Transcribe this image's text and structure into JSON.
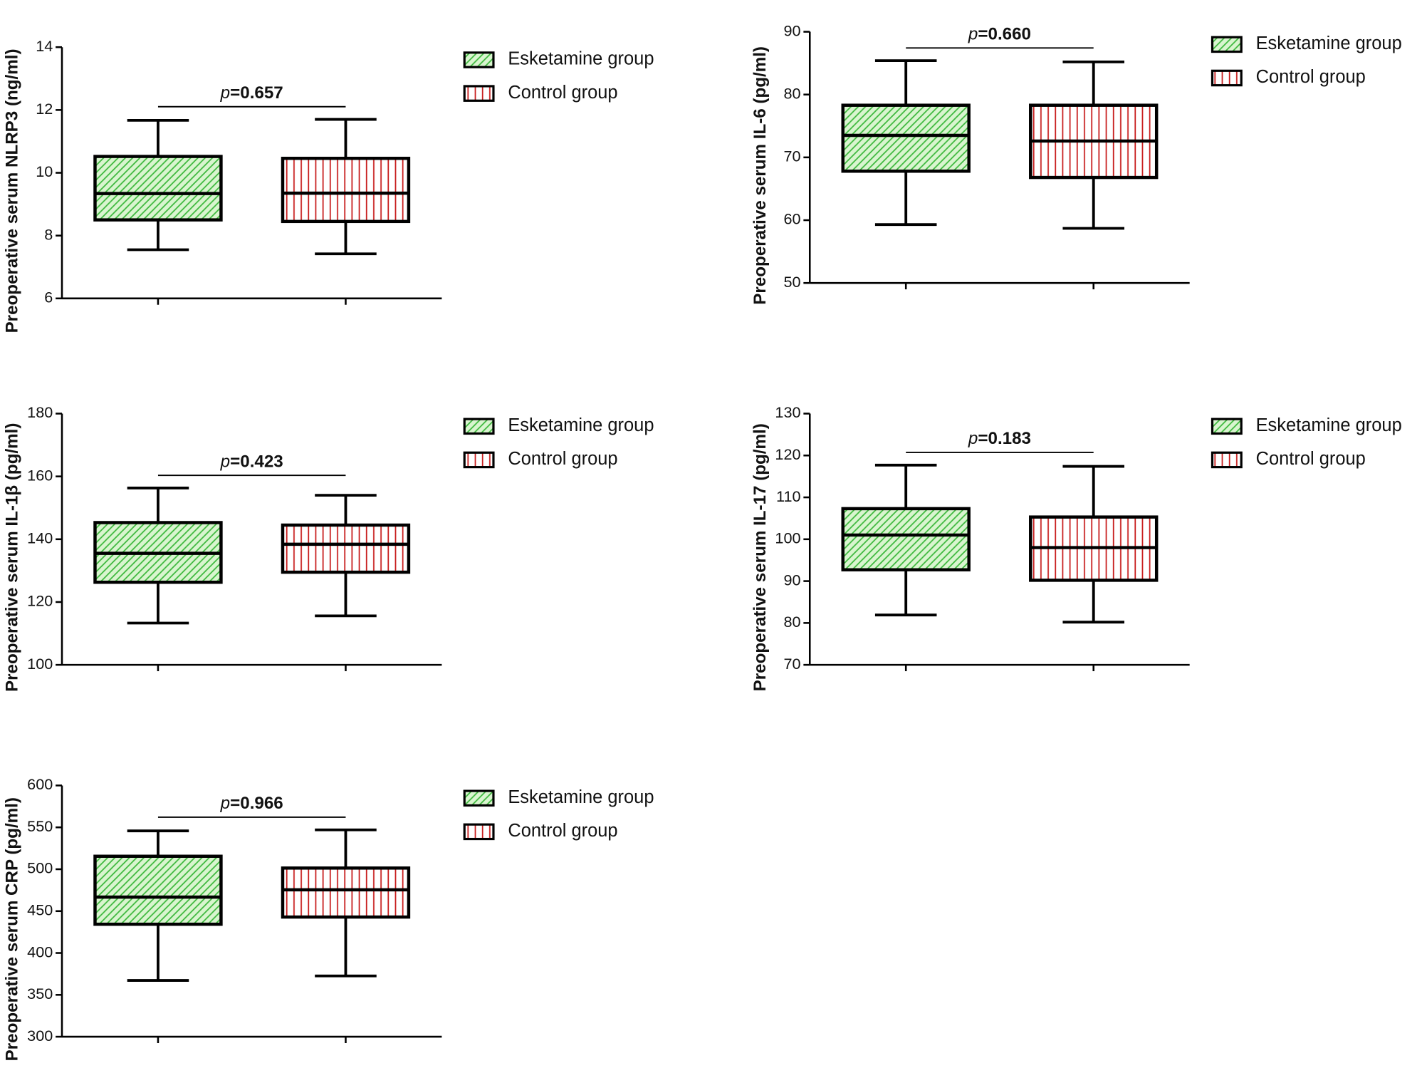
{
  "chart_data": [
    {
      "type": "box",
      "ylabel": "Preoperative serum NLRP3 (ng/ml)",
      "annotation": "p=0.657",
      "ylim": [
        6,
        14
      ],
      "yticks": [
        6,
        8,
        10,
        12,
        14
      ],
      "series": [
        {
          "name": "Esketamine group",
          "color": "#3cb83c",
          "hatch": "diagonal",
          "min": 7.55,
          "q1": 8.5,
          "median": 9.34,
          "q3": 10.52,
          "max": 11.67
        },
        {
          "name": "Control group",
          "color": "#c81e1e",
          "hatch": "vertical",
          "min": 7.42,
          "q1": 8.45,
          "median": 9.35,
          "q3": 10.46,
          "max": 11.7
        }
      ]
    },
    {
      "type": "box",
      "ylabel": "Preoperative serum IL-6 (pg/ml)",
      "annotation": "p=0.660",
      "ylim": [
        50,
        90
      ],
      "yticks": [
        50,
        60,
        70,
        80,
        90
      ],
      "series": [
        {
          "name": "Esketamine group",
          "color": "#3cb83c",
          "hatch": "diagonal",
          "min": 59.3,
          "q1": 67.8,
          "median": 73.5,
          "q3": 78.3,
          "max": 85.4
        },
        {
          "name": "Control group",
          "color": "#c81e1e",
          "hatch": "vertical",
          "min": 58.7,
          "q1": 66.8,
          "median": 72.6,
          "q3": 78.3,
          "max": 85.2
        }
      ]
    },
    {
      "type": "box",
      "ylabel": "Preoperative serum IL-1β (pg/ml)",
      "annotation": "p=0.423",
      "ylim": [
        100,
        180
      ],
      "yticks": [
        100,
        120,
        140,
        160,
        180
      ],
      "series": [
        {
          "name": "Esketamine group",
          "color": "#3cb83c",
          "hatch": "diagonal",
          "min": 113.3,
          "q1": 126.3,
          "median": 135.5,
          "q3": 145.3,
          "max": 156.3
        },
        {
          "name": "Control group",
          "color": "#c81e1e",
          "hatch": "vertical",
          "min": 115.6,
          "q1": 129.5,
          "median": 138.4,
          "q3": 144.5,
          "max": 154
        }
      ]
    },
    {
      "type": "box",
      "ylabel": "Preoperative serum IL-17 (pg/ml)",
      "annotation": "p=0.183",
      "ylim": [
        70,
        130
      ],
      "yticks": [
        70,
        80,
        90,
        100,
        110,
        120,
        130
      ],
      "series": [
        {
          "name": "Esketamine group",
          "color": "#3cb83c",
          "hatch": "diagonal",
          "min": 81.9,
          "q1": 92.7,
          "median": 101,
          "q3": 107.3,
          "max": 117.7
        },
        {
          "name": "Control group",
          "color": "#c81e1e",
          "hatch": "vertical",
          "min": 80.2,
          "q1": 90.2,
          "median": 98,
          "q3": 105.3,
          "max": 117.4
        }
      ]
    },
    {
      "type": "box",
      "ylabel": "Preoperative serum CRP (pg/ml)",
      "annotation": "p=0.966",
      "ylim": [
        300,
        600
      ],
      "yticks": [
        300,
        350,
        400,
        450,
        500,
        550,
        600
      ],
      "series": [
        {
          "name": "Esketamine group",
          "color": "#3cb83c",
          "hatch": "diagonal",
          "min": 367.2,
          "q1": 434.3,
          "median": 466.7,
          "q3": 515.5,
          "max": 545.8
        },
        {
          "name": "Control group",
          "color": "#c81e1e",
          "hatch": "vertical",
          "min": 372.6,
          "q1": 442.9,
          "median": 475.4,
          "q3": 501.4,
          "max": 547
        }
      ]
    }
  ]
}
